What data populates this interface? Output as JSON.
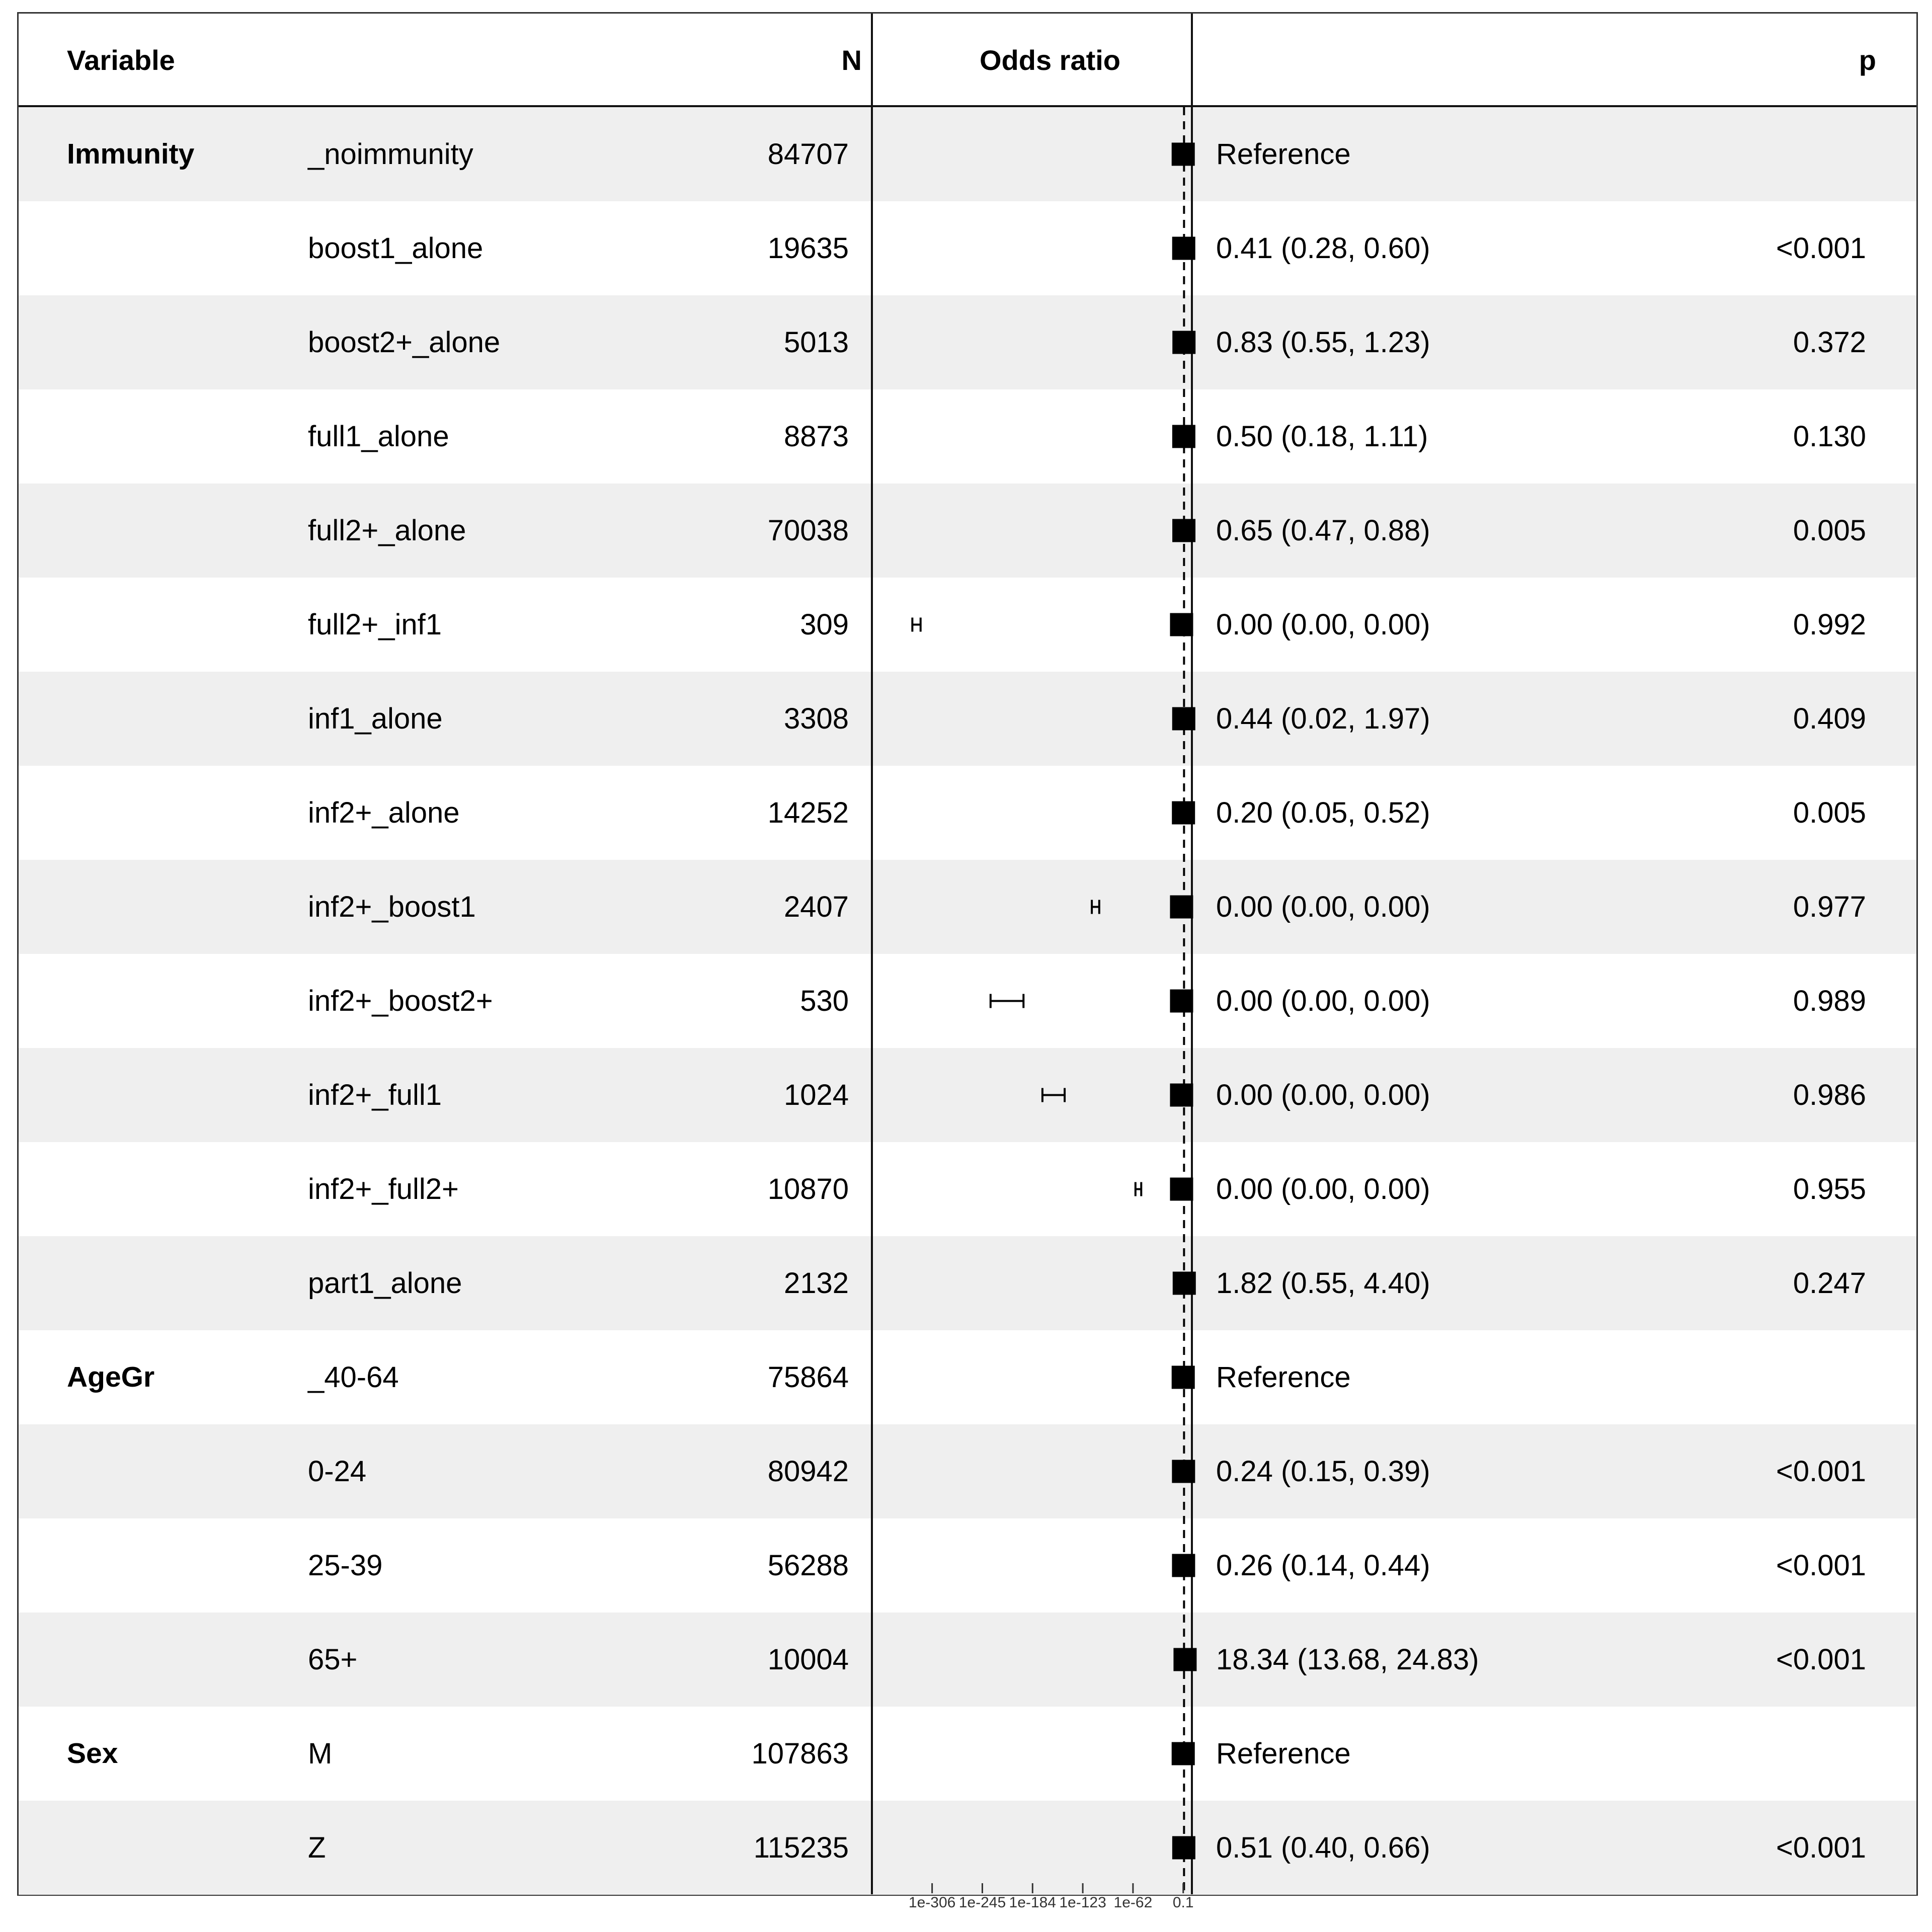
{
  "headers": {
    "variable": "Variable",
    "n": "N",
    "odds_ratio": "Odds ratio",
    "p": "p"
  },
  "rows": [
    {
      "group": "Immunity",
      "level": "_noimmunity",
      "n": "84707",
      "or_text": "Reference",
      "p": "",
      "est": 0.1,
      "lo": null,
      "hi": null
    },
    {
      "group": "",
      "level": "boost1_alone",
      "n": "19635",
      "or_text": "0.41 (0.28, 0.60)",
      "p": "<0.001",
      "est": 0.41,
      "lo": 0.28,
      "hi": 0.6
    },
    {
      "group": "",
      "level": "boost2+_alone",
      "n": "5013",
      "or_text": "0.83 (0.55, 1.23)",
      "p": "0.372",
      "est": 0.83,
      "lo": 0.55,
      "hi": 1.23
    },
    {
      "group": "",
      "level": "full1_alone",
      "n": "8873",
      "or_text": "0.50 (0.18, 1.11)",
      "p": "0.130",
      "est": 0.5,
      "lo": 0.18,
      "hi": 1.11
    },
    {
      "group": "",
      "level": "full2+_alone",
      "n": "70038",
      "or_text": "0.65 (0.47, 0.88)",
      "p": "0.005",
      "est": 0.65,
      "lo": 0.47,
      "hi": 0.88
    },
    {
      "group": "",
      "level": "full2+_inf1",
      "n": "309",
      "or_text": "0.00 (0.00, 0.00)",
      "p": "0.992",
      "est_log10": -3,
      "lo_log10": -330,
      "hi_log10": -320
    },
    {
      "group": "",
      "level": "inf1_alone",
      "n": "3308",
      "or_text": "0.44 (0.02, 1.97)",
      "p": "0.409",
      "est": 0.44,
      "lo": 0.02,
      "hi": 1.97
    },
    {
      "group": "",
      "level": "inf2+_alone",
      "n": "14252",
      "or_text": "0.20 (0.05, 0.52)",
      "p": "0.005",
      "est": 0.2,
      "lo": 0.05,
      "hi": 0.52
    },
    {
      "group": "",
      "level": "inf2+_boost1",
      "n": "2407",
      "or_text": "0.00 (0.00, 0.00)",
      "p": "0.977",
      "est_log10": -3,
      "lo_log10": -112,
      "hi_log10": -103
    },
    {
      "group": "",
      "level": "inf2+_boost2+",
      "n": "530",
      "or_text": "0.00 (0.00, 0.00)",
      "p": "0.989",
      "est_log10": -3,
      "lo_log10": -235,
      "hi_log10": -195
    },
    {
      "group": "",
      "level": "inf2+_full1",
      "n": "1024",
      "or_text": "0.00 (0.00, 0.00)",
      "p": "0.986",
      "est_log10": -3,
      "lo_log10": -172,
      "hi_log10": -145
    },
    {
      "group": "",
      "level": "inf2+_full2+",
      "n": "10870",
      "or_text": "0.00 (0.00, 0.00)",
      "p": "0.955",
      "est_log10": -3,
      "lo_log10": -59,
      "hi_log10": -52
    },
    {
      "group": "",
      "level": "part1_alone",
      "n": "2132",
      "or_text": "1.82 (0.55, 4.40)",
      "p": "0.247",
      "est": 1.82,
      "lo": 0.55,
      "hi": 4.4
    },
    {
      "group": "AgeGr",
      "level": "_40-64",
      "n": "75864",
      "or_text": "Reference",
      "p": "",
      "est": 0.1,
      "lo": null,
      "hi": null
    },
    {
      "group": "",
      "level": "0-24",
      "n": "80942",
      "or_text": "0.24 (0.15, 0.39)",
      "p": "<0.001",
      "est": 0.24,
      "lo": 0.15,
      "hi": 0.39
    },
    {
      "group": "",
      "level": "25-39",
      "n": "56288",
      "or_text": "0.26 (0.14, 0.44)",
      "p": "<0.001",
      "est": 0.26,
      "lo": 0.14,
      "hi": 0.44
    },
    {
      "group": "",
      "level": "65+",
      "n": "10004",
      "or_text": "18.34 (13.68, 24.83)",
      "p": "<0.001",
      "est": 18.34,
      "lo": 13.68,
      "hi": 24.83
    },
    {
      "group": "Sex",
      "level": "M",
      "n": "107863",
      "or_text": "Reference",
      "p": "",
      "est": 0.1,
      "lo": null,
      "hi": null
    },
    {
      "group": "",
      "level": "Z",
      "n": "115235",
      "or_text": "0.51 (0.40, 0.66)",
      "p": "<0.001",
      "est": 0.51,
      "lo": 0.4,
      "hi": 0.66
    }
  ],
  "chart_data": {
    "type": "forest",
    "scale": "log10",
    "reference_line": 1,
    "xlim_log10": [
      -340,
      1
    ],
    "tick_labels": [
      "1e-306",
      "1e-245",
      "1e-184",
      "1e-123",
      "1e-62",
      "0.1"
    ],
    "tick_log10": [
      -306,
      -245,
      -184,
      -123,
      -62,
      -1
    ],
    "marker": "square",
    "color": "#000000"
  }
}
